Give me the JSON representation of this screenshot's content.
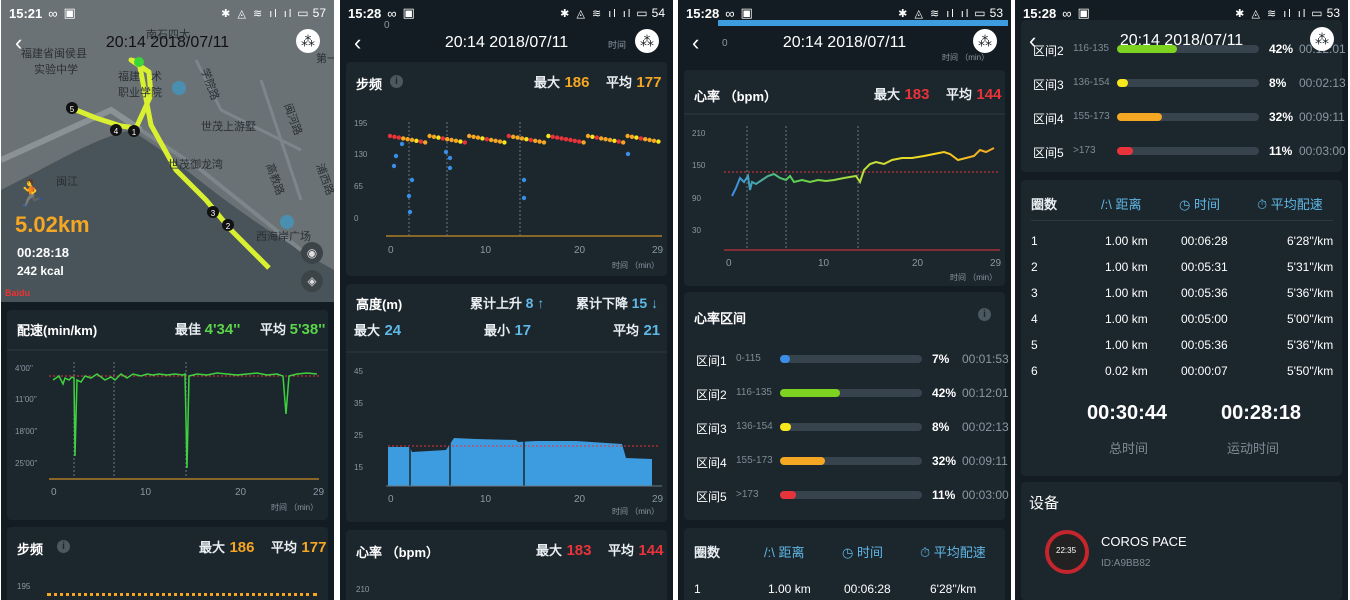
{
  "panel1": {
    "status": {
      "time": "15:21",
      "extra": "∞",
      "icons": "✱ ◬ ≋ ıl ıl",
      "battery": "57"
    },
    "header": {
      "title": "20:14 2018/07/11"
    },
    "map": {
      "labels": [
        "福建省闽侯县",
        "实验中学",
        "福建",
        "术",
        "职业学院",
        "学院路",
        "世茂上游墅",
        "世茂御龙湾",
        "闽江",
        "高教路",
        "西海岸广场",
        "闽河路",
        "浦西路",
        "第一",
        "南石四大"
      ],
      "markers": [
        "5",
        "4",
        "1",
        "3",
        "2"
      ]
    },
    "summary": {
      "distance": "5.02km",
      "duration": "00:28:18",
      "calories": "242 kcal"
    },
    "pace": {
      "title": "配速(min/km)",
      "best_label": "最佳",
      "best_value": "4'34''",
      "avg_label": "平均",
      "avg_value": "5'38''",
      "y_ticks": [
        "4'00''",
        "11'00''",
        "18'00''",
        "25'00''"
      ],
      "x_ticks": [
        "0",
        "10",
        "20",
        "29"
      ],
      "x_unit": "时间 （min）"
    },
    "cadence_peek": {
      "title": "步频",
      "max_label": "最大",
      "max_value": "186",
      "avg_label": "平均",
      "avg_value": "177",
      "y_tick": "195"
    }
  },
  "panel2": {
    "status": {
      "time": "15:28",
      "extra": "∞",
      "icons": "✱ ◬ ≋ ıl ıl",
      "battery": "54"
    },
    "header": {
      "title": "20:14 2018/07/11"
    },
    "top_axis": {
      "left": "0",
      "right": "时间"
    },
    "cadence": {
      "title": "步频",
      "max_label": "最大",
      "max_value": "186",
      "avg_label": "平均",
      "avg_value": "177",
      "y_ticks": [
        "195",
        "130",
        "65",
        "0"
      ],
      "x_ticks": [
        "0",
        "10",
        "20",
        "29"
      ],
      "x_unit": "时间 （min）"
    },
    "altitude": {
      "title": "高度(m)",
      "ascent_label": "累计上升",
      "ascent_value": "8 ↑",
      "descent_label": "累计下降",
      "descent_value": "15 ↓",
      "max_label": "最大",
      "max_value": "24",
      "min_label": "最小",
      "min_value": "17",
      "avg_label": "平均",
      "avg_value": "21",
      "y_ticks": [
        "45",
        "35",
        "25",
        "15"
      ],
      "x_ticks": [
        "0",
        "10",
        "20",
        "29"
      ],
      "x_unit": "时间 （min）"
    },
    "hr_peek": {
      "title": "心率 （bpm）",
      "max_label": "最大",
      "max_value": "183",
      "avg_label": "平均",
      "avg_value": "144",
      "y_tick": "210"
    }
  },
  "panel3": {
    "status": {
      "time": "15:28",
      "extra": "∞",
      "icons": "✱ ◬ ≋ ıl ıl",
      "battery": "53"
    },
    "header": {
      "title": "20:14 2018/07/11"
    },
    "top_axis": {
      "left": "0",
      "right": "时间 （min）"
    },
    "hr": {
      "title": "心率 （bpm）",
      "max_label": "最大",
      "max_value": "183",
      "avg_label": "平均",
      "avg_value": "144",
      "y_ticks": [
        "210",
        "150",
        "90",
        "30"
      ],
      "x_ticks": [
        "0",
        "10",
        "20",
        "29"
      ],
      "x_unit": "时间 （min）"
    },
    "zones": {
      "title": "心率区间",
      "items": [
        {
          "name": "区间1",
          "range": "0-115",
          "pct": "7%",
          "time": "00:01:53",
          "fraction": 0.07,
          "color": "#3a8ee6"
        },
        {
          "name": "区间2",
          "range": "116-135",
          "pct": "42%",
          "time": "00:12:01",
          "fraction": 0.42,
          "color": "#7ed321"
        },
        {
          "name": "区间3",
          "range": "136-154",
          "pct": "8%",
          "time": "00:02:13",
          "fraction": 0.08,
          "color": "#f8e71c"
        },
        {
          "name": "区间4",
          "range": "155-173",
          "pct": "32%",
          "time": "00:09:11",
          "fraction": 0.32,
          "color": "#f5a623"
        },
        {
          "name": "区间5",
          "range": ">173",
          "pct": "11%",
          "time": "00:03:00",
          "fraction": 0.11,
          "color": "#e8333a"
        }
      ]
    },
    "laps_peek": {
      "headers": [
        "圈数",
        "距离",
        "时间",
        "平均配速"
      ],
      "row": [
        "1",
        "1.00 km",
        "00:06:28",
        "6'28''/km"
      ]
    }
  },
  "panel4": {
    "status": {
      "time": "15:28",
      "extra": "∞",
      "icons": "✱ ◬ ≋ ıl ıl",
      "battery": "53"
    },
    "header": {
      "title": "20:14 2018/07/11"
    },
    "zones": [
      {
        "name": "区间2",
        "range": "116-135",
        "pct": "42%",
        "time": "00:12:01",
        "fraction": 0.42,
        "color": "#7ed321"
      },
      {
        "name": "区间3",
        "range": "136-154",
        "pct": "8%",
        "time": "00:02:13",
        "fraction": 0.08,
        "color": "#f8e71c"
      },
      {
        "name": "区间4",
        "range": "155-173",
        "pct": "32%",
        "time": "00:09:11",
        "fraction": 0.32,
        "color": "#f5a623"
      },
      {
        "name": "区间5",
        "range": ">173",
        "pct": "11%",
        "time": "00:03:00",
        "fraction": 0.11,
        "color": "#e8333a"
      }
    ],
    "laps": {
      "headers": [
        "圈数",
        "距离",
        "时间",
        "平均配速"
      ],
      "rows": [
        [
          "1",
          "1.00 km",
          "00:06:28",
          "6'28''/km"
        ],
        [
          "2",
          "1.00 km",
          "00:05:31",
          "5'31''/km"
        ],
        [
          "3",
          "1.00 km",
          "00:05:36",
          "5'36''/km"
        ],
        [
          "4",
          "1.00 km",
          "00:05:00",
          "5'00''/km"
        ],
        [
          "5",
          "1.00 km",
          "00:05:36",
          "5'36''/km"
        ],
        [
          "6",
          "0.02 km",
          "00:00:07",
          "5'50''/km"
        ]
      ]
    },
    "totals": {
      "total_time": "00:30:44",
      "total_label": "总时间",
      "moving_time": "00:28:18",
      "moving_label": "运动时间"
    },
    "device": {
      "section": "设备",
      "name": "COROS PACE",
      "id": "ID:A9BB82",
      "watch_time": "22:35"
    }
  },
  "colors": {
    "bg": "#131c22",
    "card": "#1c262d",
    "orange": "#f5a623",
    "red": "#e8333a",
    "green": "#5bd34a",
    "blue": "#5fb8e6",
    "route": "#d9f030"
  }
}
